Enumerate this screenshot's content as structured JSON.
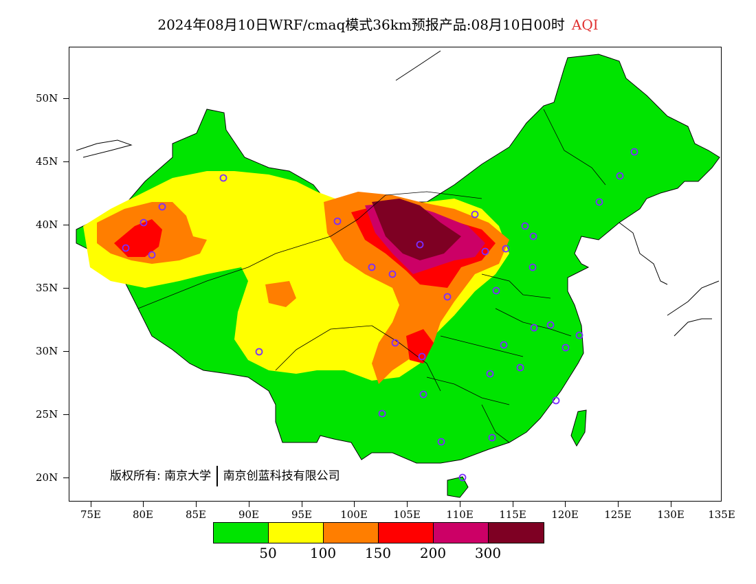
{
  "title": {
    "text": "2024年08月10日WRF/cmaq模式36km预报产品:08月10日00时",
    "variable": "AQI",
    "variable_color": "#e03030"
  },
  "map": {
    "lat_labels": [
      "50N",
      "45N",
      "40N",
      "35N",
      "30N",
      "25N",
      "20N"
    ],
    "lon_labels": [
      "75E",
      "80E",
      "85E",
      "90E",
      "95E",
      "100E",
      "105E",
      "110E",
      "115E",
      "120E",
      "125E",
      "130E",
      "135E"
    ],
    "copyright": {
      "prefix": "版权所有:",
      "org1": "南京大学",
      "org2": "南京创蓝科技有限公司"
    },
    "city_marker_color": "#7b2cff"
  },
  "legend": {
    "colors": [
      "#00e400",
      "#ffff00",
      "#ff7e00",
      "#ff0000",
      "#cc0066",
      "#7e0023"
    ],
    "labels": [
      "50",
      "100",
      "150",
      "200",
      "300"
    ]
  }
}
